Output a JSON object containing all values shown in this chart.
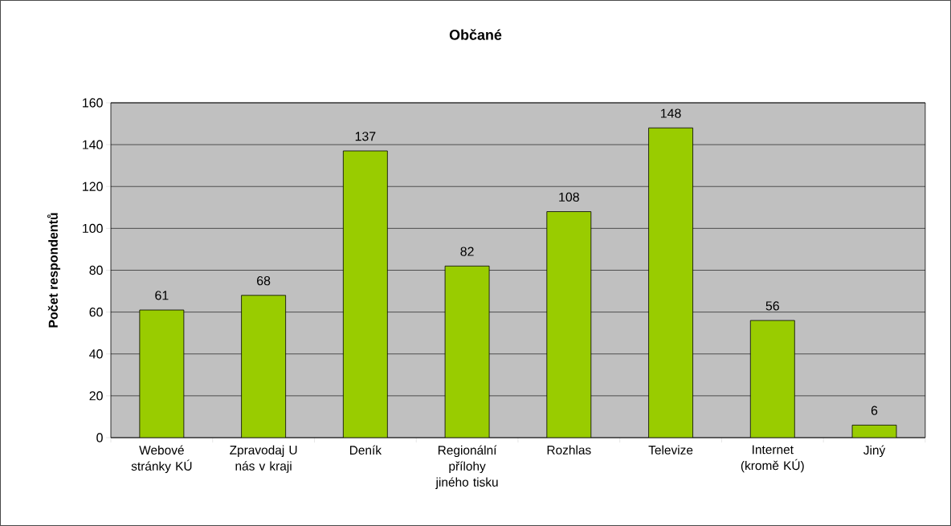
{
  "chart_data": {
    "type": "bar",
    "title": "Občané",
    "ylabel": "Počet respondentů",
    "categories": [
      "Webové stránky KÚ",
      "Zpravodaj U nás v kraji",
      "Deník",
      "Regionální přílohy jiného tisku",
      "Rozhlas",
      "Televize",
      "Internet (kromě KÚ)",
      "Jiný"
    ],
    "values": [
      61,
      68,
      137,
      82,
      108,
      148,
      56,
      6
    ],
    "color": "#99cc00",
    "ylim": [
      0,
      160
    ],
    "yticks": [
      0,
      20,
      40,
      60,
      80,
      100,
      120,
      140,
      160
    ],
    "grid": "y",
    "data_labels": true
  }
}
